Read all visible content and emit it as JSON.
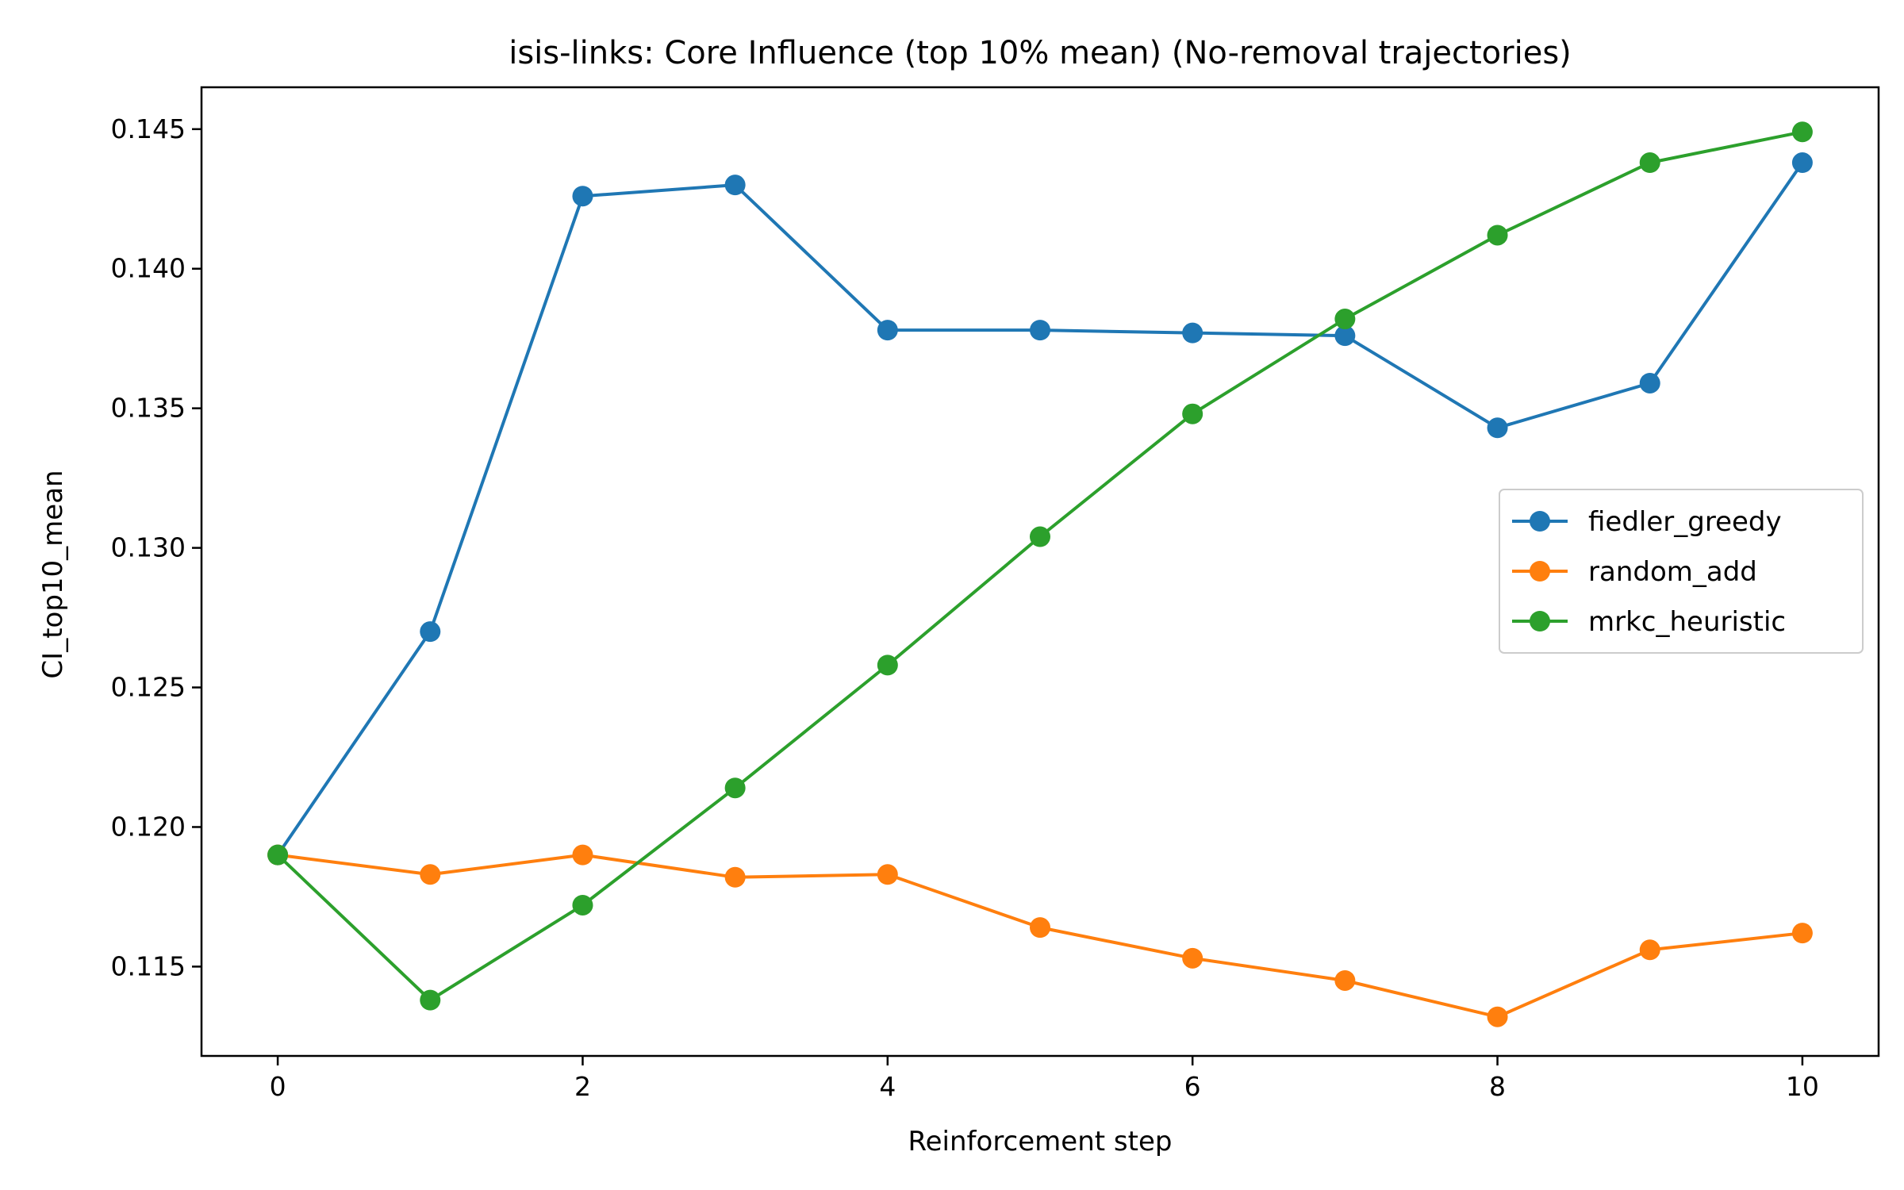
{
  "chart_data": {
    "type": "line",
    "title": "isis-links: Core Influence (top 10% mean) (No-removal trajectories)",
    "xlabel": "Reinforcement step",
    "ylabel": "CI_top10_mean",
    "xlim": [
      -0.5,
      10.5
    ],
    "ylim": [
      0.1118,
      0.1465
    ],
    "xticks": [
      0,
      2,
      4,
      6,
      8,
      10
    ],
    "yticks": [
      0.115,
      0.12,
      0.125,
      0.13,
      0.135,
      0.14,
      0.145
    ],
    "ytick_labels": [
      "0.115",
      "0.120",
      "0.125",
      "0.130",
      "0.135",
      "0.140",
      "0.145"
    ],
    "grid": false,
    "legend_position": "center-right",
    "x": [
      0,
      1,
      2,
      3,
      4,
      5,
      6,
      7,
      8,
      9,
      10
    ],
    "series": [
      {
        "name": "fiedler_greedy",
        "color": "#1f77b4",
        "values": [
          0.119,
          0.127,
          0.1426,
          0.143,
          0.1378,
          0.1378,
          0.1377,
          0.1376,
          0.1343,
          0.1359,
          0.1438
        ]
      },
      {
        "name": "random_add",
        "color": "#ff7f0e",
        "values": [
          0.119,
          0.1183,
          0.119,
          0.1182,
          0.1183,
          0.1164,
          0.1153,
          0.1145,
          0.1132,
          0.1156,
          0.1162
        ]
      },
      {
        "name": "mrkc_heuristic",
        "color": "#2ca02c",
        "values": [
          0.119,
          0.1138,
          0.1172,
          0.1214,
          0.1258,
          0.1304,
          0.1348,
          0.1382,
          0.1412,
          0.1438,
          0.1449
        ]
      }
    ]
  }
}
